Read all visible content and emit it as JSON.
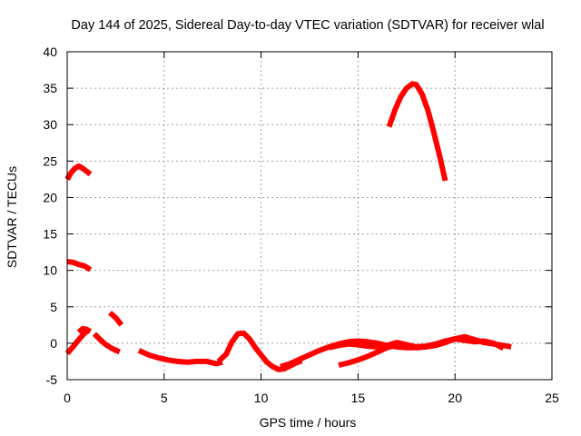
{
  "chart_data": {
    "type": "line",
    "title": "Day 144 of 2025, Sidereal Day-to-day VTEC variation (SDTVAR) for receiver wlal",
    "xlabel": "GPS time / hours",
    "ylabel": "SDTVAR / TECUs",
    "xlim": [
      0,
      25
    ],
    "ylim": [
      -5,
      40
    ],
    "xticks": [
      0,
      5,
      10,
      15,
      20,
      25
    ],
    "yticks": [
      -5,
      0,
      5,
      10,
      15,
      20,
      25,
      30,
      35,
      40
    ],
    "grid": true,
    "legend": "none",
    "series_color": "#ff0000",
    "series": [
      {
        "name": "segment-1",
        "x": [
          0.0,
          0.2,
          0.4,
          0.6,
          0.8,
          1.0,
          1.2
        ],
        "y": [
          22.5,
          23.4,
          24.0,
          24.3,
          24.0,
          23.6,
          23.2
        ]
      },
      {
        "name": "segment-2",
        "x": [
          0.0,
          0.3,
          0.6,
          0.9,
          1.2
        ],
        "y": [
          11.2,
          11.1,
          10.8,
          10.6,
          10.1
        ]
      },
      {
        "name": "segment-3",
        "x": [
          0.0,
          0.3,
          0.6,
          0.9,
          1.1
        ],
        "y": [
          -1.4,
          -0.5,
          0.5,
          1.4,
          1.8
        ]
      },
      {
        "name": "segment-4",
        "x": [
          0.6,
          0.8,
          1.0,
          1.2
        ],
        "y": [
          1.5,
          2.0,
          1.9,
          1.6
        ]
      },
      {
        "name": "segment-5",
        "x": [
          1.4,
          1.7,
          2.0,
          2.3,
          2.7
        ],
        "y": [
          1.3,
          0.5,
          -0.2,
          -0.7,
          -1.2
        ]
      },
      {
        "name": "segment-6",
        "x": [
          2.2,
          2.5,
          2.8
        ],
        "y": [
          4.2,
          3.5,
          2.5
        ]
      },
      {
        "name": "segment-7",
        "x": [
          3.7,
          4.2,
          4.7,
          5.2,
          5.7,
          6.2,
          6.7,
          7.2,
          7.7,
          8.0
        ],
        "y": [
          -1.0,
          -1.6,
          -2.0,
          -2.3,
          -2.5,
          -2.6,
          -2.5,
          -2.5,
          -2.8,
          -2.6
        ]
      },
      {
        "name": "segment-8",
        "x": [
          7.8,
          8.2,
          8.5,
          8.8,
          9.1,
          9.4,
          9.7,
          10.0,
          10.3,
          10.6,
          10.9,
          11.2,
          11.5,
          11.8,
          12.1
        ],
        "y": [
          -2.5,
          -1.5,
          0.2,
          1.3,
          1.4,
          0.6,
          -0.6,
          -1.6,
          -2.6,
          -3.2,
          -3.6,
          -3.5,
          -3.1,
          -2.7,
          -2.4
        ]
      },
      {
        "name": "segment-9",
        "x": [
          11.0,
          11.5,
          12.0,
          12.5,
          13.0,
          13.5,
          14.0,
          14.5,
          15.0,
          15.5,
          16.0,
          16.5,
          17.0,
          17.5,
          18.0,
          18.5,
          19.0,
          19.5,
          20.0,
          20.5,
          21.0,
          21.5,
          22.0,
          22.5,
          22.9
        ],
        "y": [
          -3.2,
          -2.8,
          -2.2,
          -1.6,
          -1.0,
          -0.5,
          -0.1,
          0.2,
          0.3,
          0.2,
          0.0,
          -0.3,
          -0.5,
          -0.6,
          -0.6,
          -0.5,
          -0.3,
          0.1,
          0.6,
          0.9,
          0.5,
          0.1,
          -0.1,
          -0.3,
          -0.5
        ]
      },
      {
        "name": "segment-10",
        "x": [
          13.5,
          14.0,
          14.5,
          15.0,
          15.5,
          16.0,
          16.5,
          17.0,
          17.5,
          18.0,
          18.5,
          19.0,
          19.5,
          20.0,
          20.5,
          21.0,
          21.5,
          22.0,
          22.5
        ],
        "y": [
          -0.6,
          -0.3,
          -0.1,
          -0.2,
          -0.4,
          -0.5,
          -0.3,
          0.1,
          -0.2,
          -0.5,
          -0.4,
          -0.1,
          0.3,
          0.6,
          0.4,
          0.2,
          0.3,
          0.0,
          -0.7
        ]
      },
      {
        "name": "segment-11",
        "x": [
          14.0,
          14.5,
          15.0,
          15.5,
          16.0,
          16.5,
          17.0
        ],
        "y": [
          -3.0,
          -2.7,
          -2.3,
          -1.8,
          -1.2,
          -0.6,
          -0.2
        ]
      },
      {
        "name": "segment-12",
        "x": [
          16.6,
          16.9,
          17.2,
          17.5,
          17.8,
          18.0,
          18.3,
          18.6,
          18.9,
          19.2,
          19.5
        ],
        "y": [
          29.7,
          32.0,
          33.8,
          35.0,
          35.6,
          35.5,
          34.2,
          32.0,
          29.0,
          25.8,
          22.3
        ]
      }
    ]
  }
}
